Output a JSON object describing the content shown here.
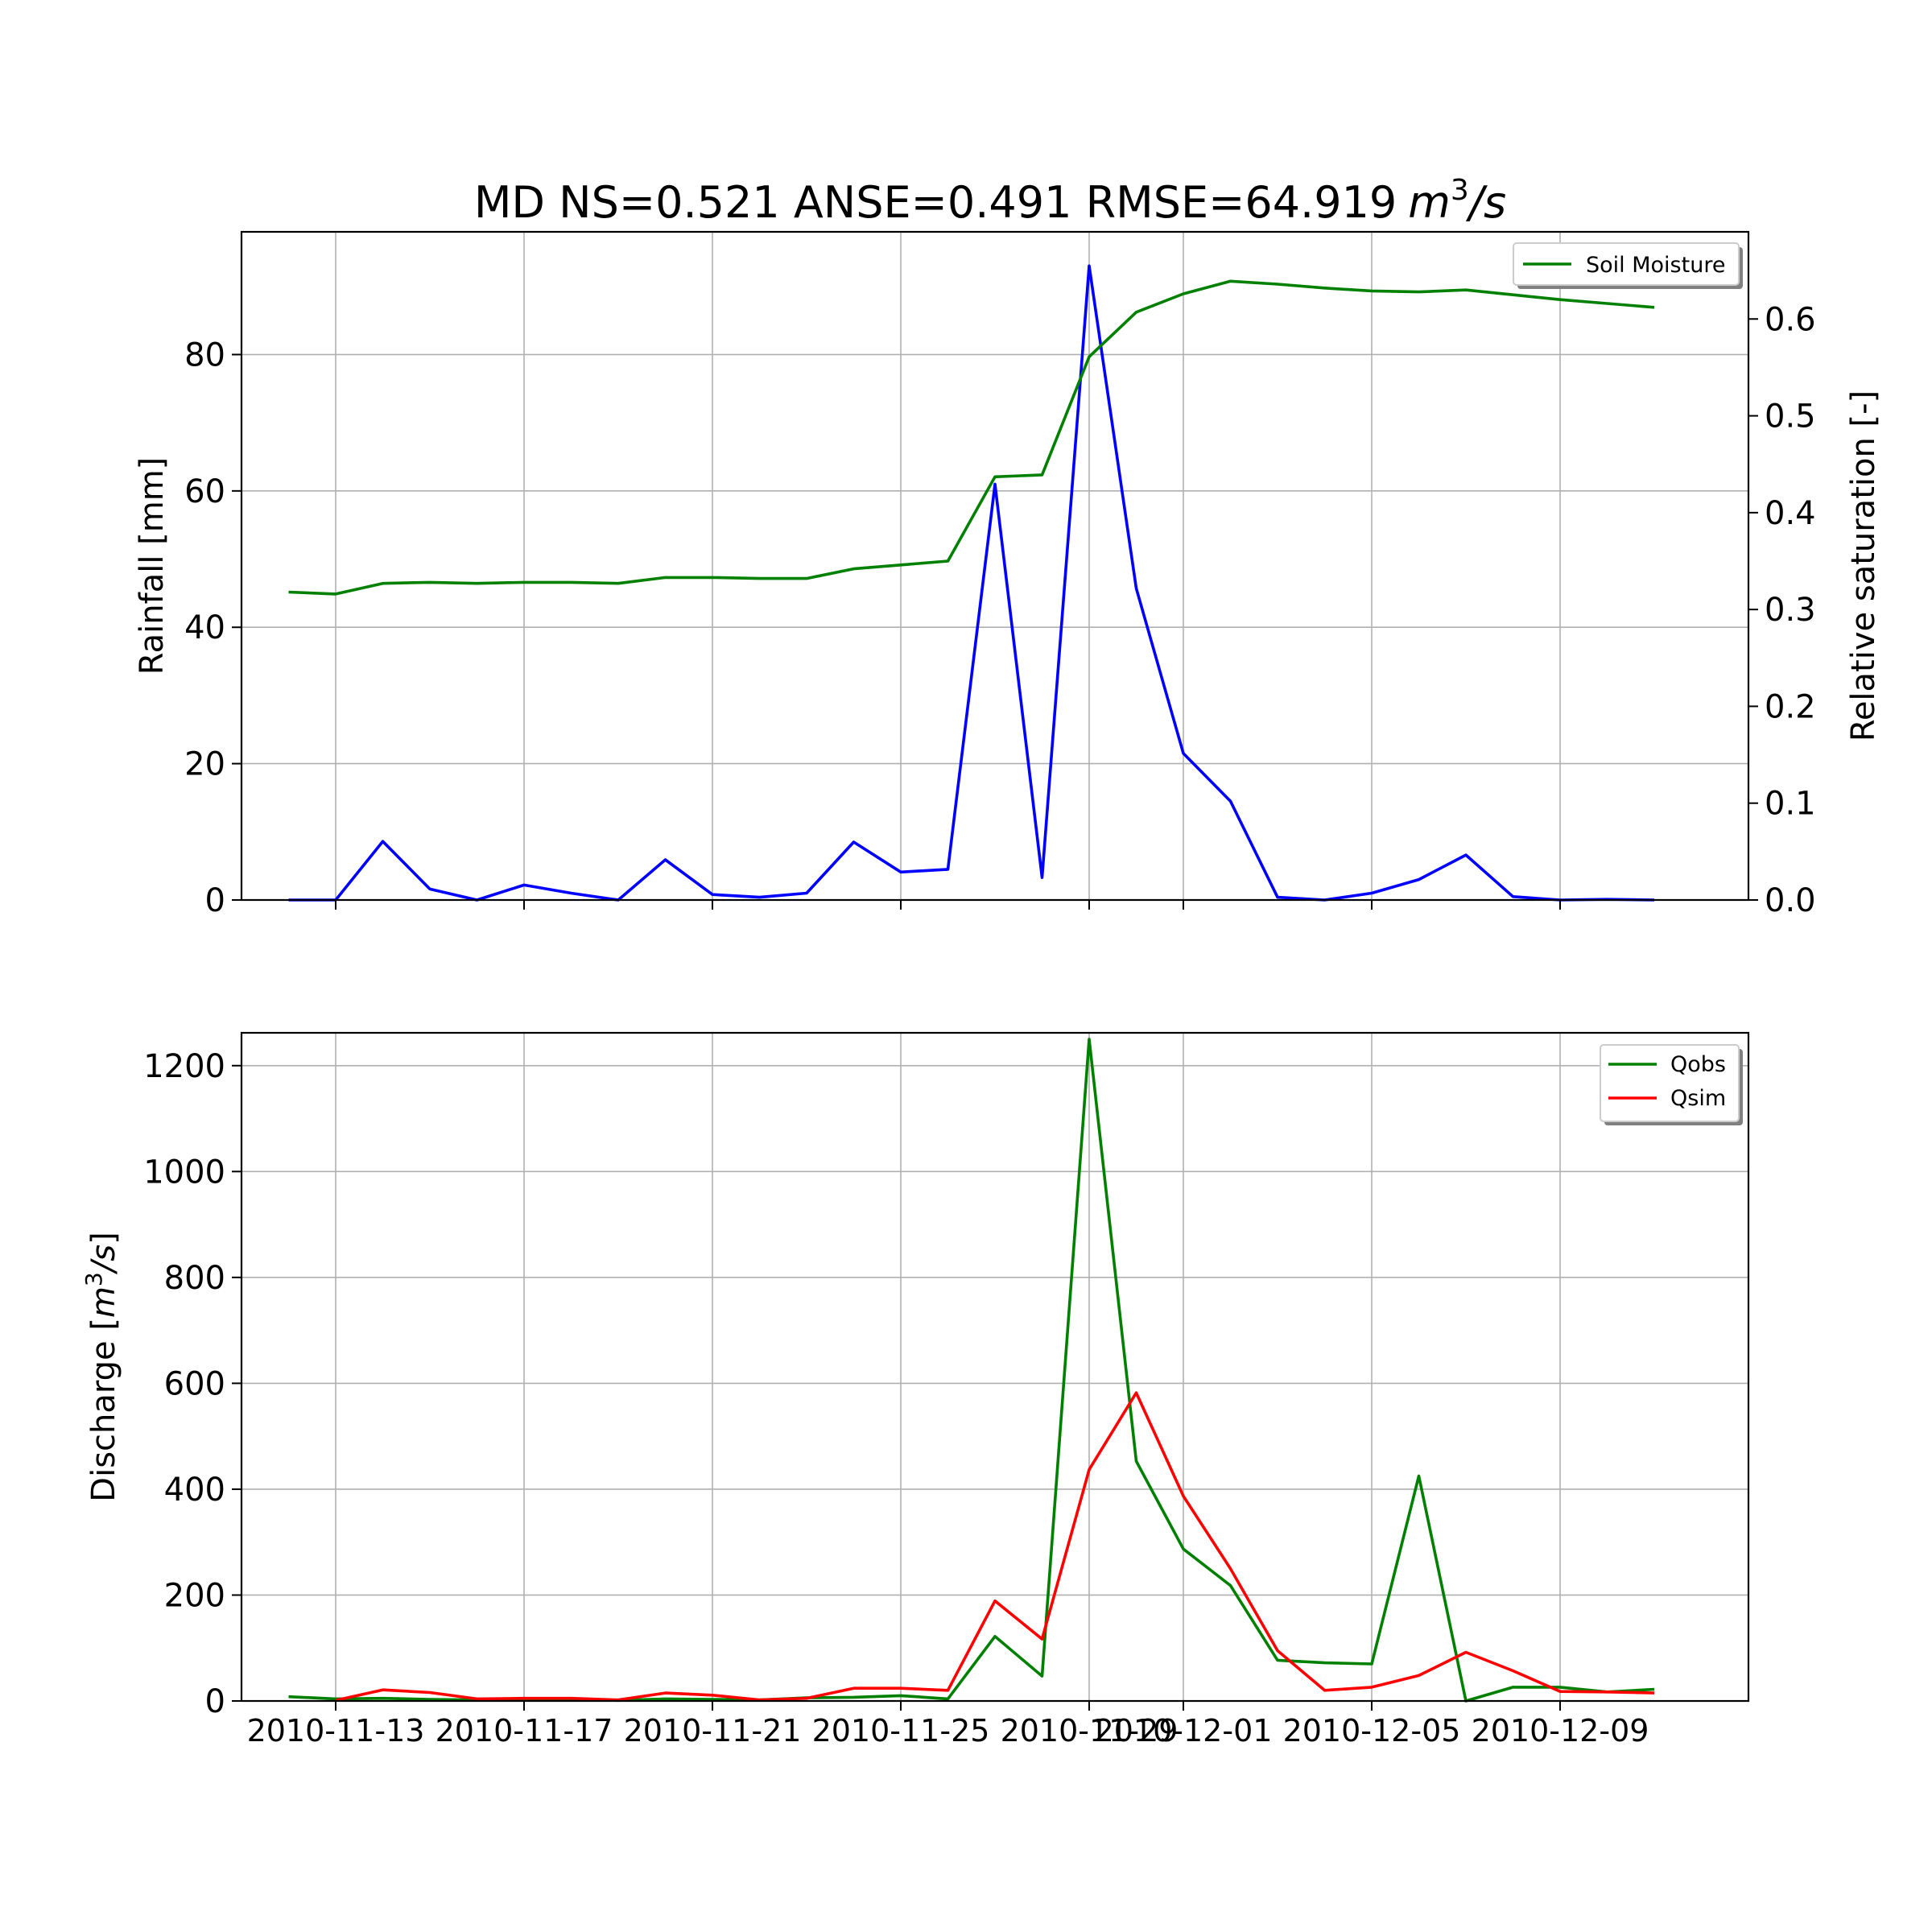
{
  "figure": {
    "title": "MD NS=0.521 ANSE=0.491 RMSE=64.919",
    "title_unit_base": "m",
    "title_unit_exp": "3",
    "title_unit_tail": "/s"
  },
  "colors": {
    "rainfall": "#0000ff",
    "soil_moisture": "#008000",
    "qobs": "#008000",
    "qsim": "#ff0000",
    "grid": "#b0b0b0"
  },
  "chart_data": [
    {
      "type": "line",
      "title": "MD NS=0.521 ANSE=0.491 RMSE=64.919 m³/s",
      "xlabel": "",
      "ylabel": "Rainfall [mm]",
      "ylabel_right": "Relative saturation [-]",
      "x": [
        "2010-11-12",
        "2010-11-13",
        "2010-11-14",
        "2010-11-15",
        "2010-11-16",
        "2010-11-17",
        "2010-11-18",
        "2010-11-19",
        "2010-11-20",
        "2010-11-21",
        "2010-11-22",
        "2010-11-23",
        "2010-11-24",
        "2010-11-25",
        "2010-11-26",
        "2010-11-27",
        "2010-11-28",
        "2010-11-29",
        "2010-11-30",
        "2010-12-01",
        "2010-12-02",
        "2010-12-03",
        "2010-12-04",
        "2010-12-05",
        "2010-12-06",
        "2010-12-07",
        "2010-12-08",
        "2010-12-09",
        "2010-12-10",
        "2010-12-11"
      ],
      "xlim": [
        "2010-11-11",
        "2010-12-13"
      ],
      "ylim": [
        0,
        98
      ],
      "ylim_right": [
        0,
        0.69
      ],
      "yticks": [
        0,
        20,
        40,
        60,
        80
      ],
      "yticks_right": [
        0.0,
        0.1,
        0.2,
        0.3,
        0.4,
        0.5,
        0.6
      ],
      "grid": true,
      "legend_position": "top-right",
      "series": [
        {
          "axis": "left",
          "color": "blue",
          "values": [
            0.0,
            0.0,
            8.6,
            1.6,
            0.0,
            2.2,
            1.0,
            0.0,
            5.9,
            0.8,
            0.4,
            1.0,
            8.5,
            4.1,
            4.5,
            61.0,
            3.3,
            93.0,
            45.7,
            21.5,
            14.5,
            0.4,
            0.0,
            1.0,
            3.0,
            6.6,
            0.5,
            0.0,
            0.1,
            0.0
          ]
        },
        {
          "name": "Soil Moisture",
          "axis": "right",
          "color": "green",
          "values": [
            0.318,
            0.316,
            0.327,
            0.328,
            0.327,
            0.328,
            0.328,
            0.327,
            0.333,
            0.333,
            0.332,
            0.332,
            0.342,
            0.346,
            0.35,
            0.437,
            0.439,
            0.561,
            0.607,
            0.626,
            0.639,
            0.636,
            0.632,
            0.629,
            0.628,
            0.63,
            0.625,
            0.62,
            0.616,
            0.612
          ]
        }
      ]
    },
    {
      "type": "line",
      "xlabel": "",
      "ylabel": "Discharge [m³/s]",
      "x": [
        "2010-11-12",
        "2010-11-13",
        "2010-11-14",
        "2010-11-15",
        "2010-11-16",
        "2010-11-17",
        "2010-11-18",
        "2010-11-19",
        "2010-11-20",
        "2010-11-21",
        "2010-11-22",
        "2010-11-23",
        "2010-11-24",
        "2010-11-25",
        "2010-11-26",
        "2010-11-27",
        "2010-11-28",
        "2010-11-29",
        "2010-11-30",
        "2010-12-01",
        "2010-12-02",
        "2010-12-03",
        "2010-12-04",
        "2010-12-05",
        "2010-12-06",
        "2010-12-07",
        "2010-12-08",
        "2010-12-09",
        "2010-12-10",
        "2010-12-11"
      ],
      "xlim": [
        "2010-11-11",
        "2010-12-13"
      ],
      "ylim": [
        0,
        1262
      ],
      "yticks": [
        0,
        200,
        400,
        600,
        800,
        1000,
        1200
      ],
      "xticks": [
        "2010-11-13",
        "2010-11-17",
        "2010-11-21",
        "2010-11-25",
        "2010-11-29",
        "2010-12-01",
        "2010-12-05",
        "2010-12-09"
      ],
      "grid": true,
      "legend_position": "top-right",
      "series": [
        {
          "name": "Qobs",
          "color": "green",
          "values": [
            8,
            4,
            5,
            3,
            2,
            3,
            2,
            1,
            4,
            3,
            2,
            6,
            7,
            10,
            4,
            122,
            47,
            1250,
            453,
            287,
            218,
            77,
            72,
            70,
            425,
            0,
            26,
            26,
            17,
            22
          ]
        },
        {
          "name": "Qsim",
          "color": "red",
          "values": [
            null,
            1,
            21,
            16,
            4,
            5,
            5,
            2,
            15,
            11,
            2,
            5,
            24,
            24,
            20,
            189,
            117,
            437,
            582,
            387,
            250,
            95,
            20,
            26,
            48,
            92,
            57,
            18,
            17,
            15
          ]
        }
      ]
    }
  ]
}
